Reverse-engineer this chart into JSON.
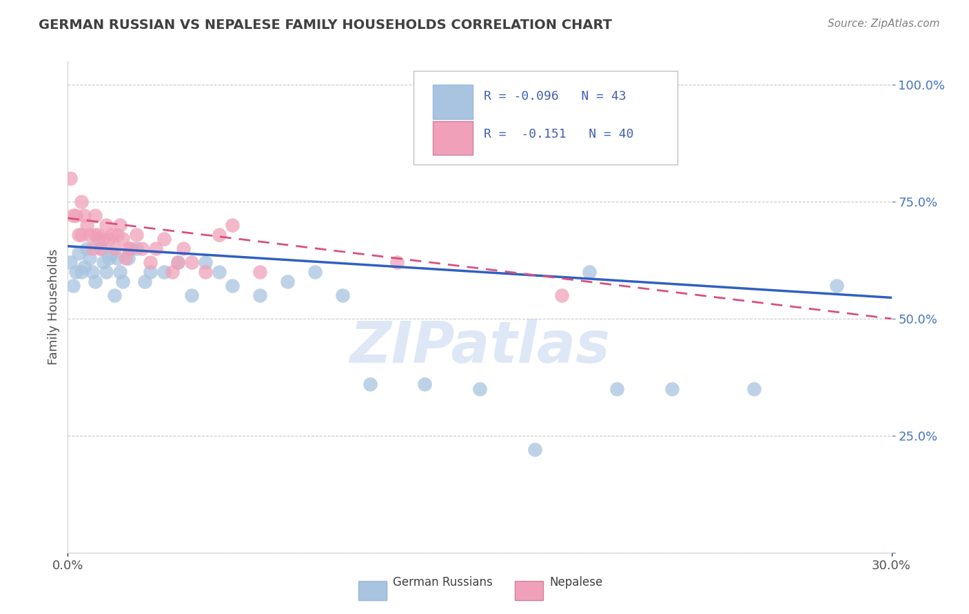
{
  "title": "GERMAN RUSSIAN VS NEPALESE FAMILY HOUSEHOLDS CORRELATION CHART",
  "source": "Source: ZipAtlas.com",
  "ylabel": "Family Households",
  "xlim": [
    0.0,
    0.3
  ],
  "ylim": [
    0.0,
    1.05
  ],
  "ytick_vals": [
    0.0,
    0.25,
    0.5,
    0.75,
    1.0
  ],
  "ytick_labels": [
    "",
    "25.0%",
    "50.0%",
    "75.0%",
    "100.0%"
  ],
  "xtick_vals": [
    0.0,
    0.3
  ],
  "xtick_labels": [
    "0.0%",
    "30.0%"
  ],
  "blue_color": "#a8c4e0",
  "pink_color": "#f0a0b8",
  "blue_line_color": "#3060c0",
  "pink_line_color": "#d85080",
  "axis_tick_color": "#4472c4",
  "title_color": "#404040",
  "source_color": "#808080",
  "watermark": "ZIPatlas",
  "watermark_color": "#c8d8f0",
  "grid_color": "#c8c8c8",
  "background_color": "#ffffff",
  "legend_text_color": "#4060b0",
  "legend_r1_val": "-0.096",
  "legend_n1_val": "43",
  "legend_r2_val": "-0.151",
  "legend_n2_val": "40",
  "gr_x": [
    0.001,
    0.002,
    0.003,
    0.004,
    0.005,
    0.006,
    0.007,
    0.008,
    0.009,
    0.01,
    0.011,
    0.012,
    0.013,
    0.014,
    0.015,
    0.016,
    0.017,
    0.018,
    0.019,
    0.02,
    0.022,
    0.025,
    0.028,
    0.03,
    0.035,
    0.04,
    0.045,
    0.05,
    0.055,
    0.06,
    0.07,
    0.08,
    0.09,
    0.1,
    0.11,
    0.13,
    0.15,
    0.17,
    0.19,
    0.2,
    0.22,
    0.25,
    0.28
  ],
  "gr_y": [
    0.62,
    0.57,
    0.6,
    0.64,
    0.6,
    0.61,
    0.65,
    0.63,
    0.6,
    0.58,
    0.67,
    0.65,
    0.62,
    0.6,
    0.63,
    0.64,
    0.55,
    0.63,
    0.6,
    0.58,
    0.63,
    0.65,
    0.58,
    0.6,
    0.6,
    0.62,
    0.55,
    0.62,
    0.6,
    0.57,
    0.55,
    0.58,
    0.6,
    0.55,
    0.36,
    0.36,
    0.35,
    0.22,
    0.6,
    0.35,
    0.35,
    0.35,
    0.57
  ],
  "nep_x": [
    0.001,
    0.002,
    0.003,
    0.004,
    0.005,
    0.005,
    0.006,
    0.007,
    0.008,
    0.009,
    0.01,
    0.01,
    0.011,
    0.012,
    0.013,
    0.014,
    0.015,
    0.016,
    0.017,
    0.018,
    0.019,
    0.02,
    0.021,
    0.022,
    0.023,
    0.025,
    0.027,
    0.03,
    0.032,
    0.035,
    0.038,
    0.04,
    0.042,
    0.045,
    0.05,
    0.055,
    0.06,
    0.07,
    0.12,
    0.18
  ],
  "nep_y": [
    0.8,
    0.72,
    0.72,
    0.68,
    0.75,
    0.68,
    0.72,
    0.7,
    0.68,
    0.65,
    0.72,
    0.68,
    0.68,
    0.65,
    0.67,
    0.7,
    0.67,
    0.68,
    0.65,
    0.68,
    0.7,
    0.67,
    0.63,
    0.65,
    0.65,
    0.68,
    0.65,
    0.62,
    0.65,
    0.67,
    0.6,
    0.62,
    0.65,
    0.62,
    0.6,
    0.68,
    0.7,
    0.6,
    0.62,
    0.55
  ],
  "gr_line_x0": 0.0,
  "gr_line_x1": 0.3,
  "gr_line_y0": 0.655,
  "gr_line_y1": 0.545,
  "nep_line_x0": 0.0,
  "nep_line_x1": 0.3,
  "nep_line_y0": 0.715,
  "nep_line_y1": 0.5
}
